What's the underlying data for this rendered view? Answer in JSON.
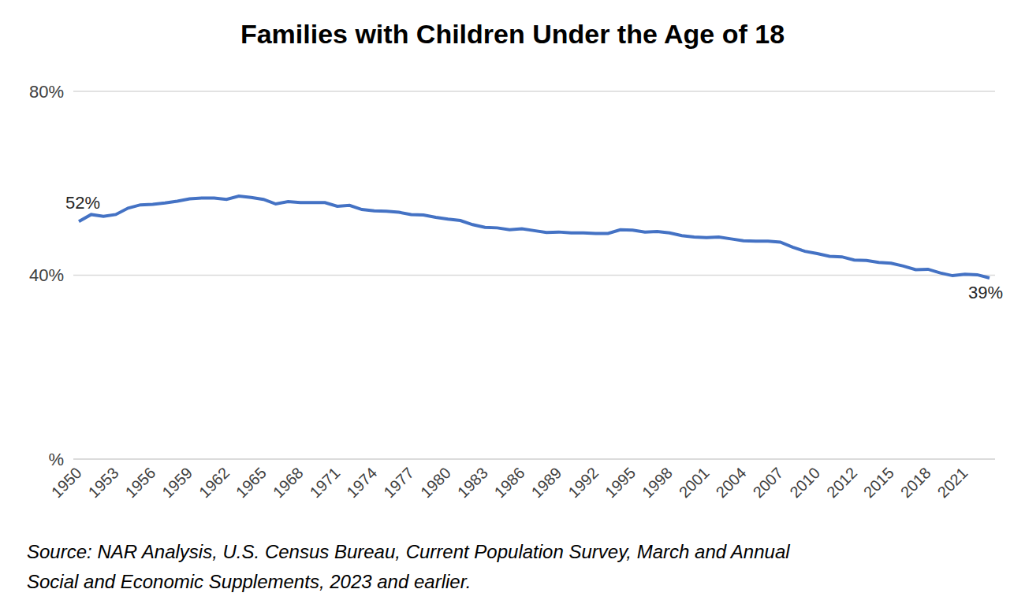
{
  "chart_data": {
    "type": "line",
    "title": "Families with Children Under the Age of 18",
    "source": [
      "Source: NAR Analysis, U.S. Census Bureau, Current Population Survey, March and Annual",
      "Social and Economic Supplements, 2023 and earlier."
    ],
    "categories": [
      "1950",
      null,
      null,
      "1953",
      null,
      null,
      "1956",
      null,
      null,
      "1959",
      null,
      null,
      "1962",
      null,
      null,
      "1965",
      null,
      null,
      "1968",
      null,
      null,
      "1971",
      null,
      null,
      "1974",
      null,
      null,
      "1977",
      null,
      null,
      "1980",
      null,
      null,
      "1983",
      null,
      null,
      "1986",
      null,
      null,
      "1989",
      null,
      null,
      "1992",
      null,
      null,
      "1995",
      null,
      null,
      "1998",
      null,
      null,
      "2001",
      null,
      null,
      "2004",
      null,
      null,
      "2007",
      null,
      null,
      "2010",
      null,
      null,
      "2012",
      null,
      null,
      "2015",
      null,
      null,
      "2018",
      null,
      null,
      "2021",
      null,
      null
    ],
    "values": [
      51.7,
      53.2,
      52.8,
      53.2,
      54.6,
      55.3,
      55.4,
      55.7,
      56.1,
      56.6,
      56.8,
      56.8,
      56.5,
      57.2,
      56.9,
      56.5,
      55.5,
      56.0,
      55.8,
      55.8,
      55.8,
      55.0,
      55.2,
      54.3,
      54.0,
      53.9,
      53.7,
      53.2,
      53.1,
      52.6,
      52.2,
      51.9,
      51.0,
      50.4,
      50.3,
      49.9,
      50.1,
      49.7,
      49.3,
      49.4,
      49.2,
      49.2,
      49.1,
      49.1,
      49.9,
      49.8,
      49.4,
      49.5,
      49.2,
      48.6,
      48.3,
      48.2,
      48.3,
      47.9,
      47.5,
      47.4,
      47.4,
      47.2,
      46.1,
      45.2,
      44.7,
      44.1,
      44.0,
      43.3,
      43.2,
      42.8,
      42.6,
      42.0,
      41.2,
      41.3,
      40.5,
      39.9,
      40.2,
      40.1,
      39.4
    ],
    "data_labels": true,
    "value_labels": [
      "52%",
      null,
      null,
      null,
      null,
      null,
      null,
      null,
      null,
      null,
      null,
      null,
      null,
      null,
      null,
      null,
      null,
      null,
      null,
      null,
      null,
      null,
      null,
      null,
      null,
      null,
      null,
      null,
      null,
      null,
      null,
      null,
      null,
      null,
      null,
      null,
      null,
      null,
      null,
      null,
      null,
      null,
      null,
      null,
      null,
      null,
      null,
      null,
      null,
      null,
      null,
      null,
      null,
      null,
      null,
      null,
      null,
      null,
      null,
      null,
      null,
      null,
      null,
      null,
      null,
      null,
      null,
      null,
      null,
      null,
      null,
      null,
      null,
      null,
      "39%"
    ],
    "color": "#4472c4",
    "ylim": [
      0,
      80
    ],
    "yticks": [
      {
        "value": 0,
        "label": "%"
      },
      {
        "value": 40,
        "label": "40%"
      },
      {
        "value": 80,
        "label": "80%"
      }
    ],
    "grid": true
  }
}
